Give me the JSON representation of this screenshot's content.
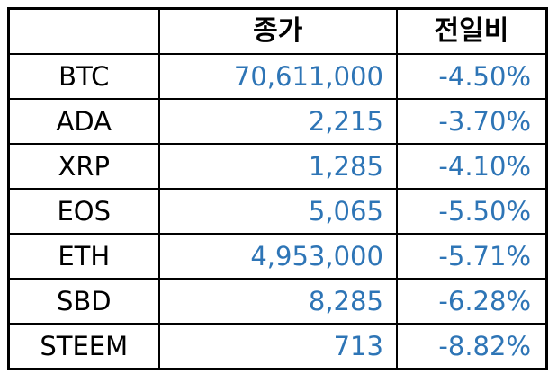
{
  "colors": {
    "value_text": "#2e75b6",
    "header_text": "#000000",
    "border": "#000000",
    "background": "#ffffff"
  },
  "chart_data": {
    "type": "table",
    "title": "",
    "columns": [
      "",
      "종가",
      "전일비"
    ],
    "rows": [
      {
        "ticker": "BTC",
        "close": "70,611,000",
        "close_value": 70611000,
        "change": "-4.50%",
        "change_value": -4.5
      },
      {
        "ticker": "ADA",
        "close": "2,215",
        "close_value": 2215,
        "change": "-3.70%",
        "change_value": -3.7
      },
      {
        "ticker": "XRP",
        "close": "1,285",
        "close_value": 1285,
        "change": "-4.10%",
        "change_value": -4.1
      },
      {
        "ticker": "EOS",
        "close": "5,065",
        "close_value": 5065,
        "change": "-5.50%",
        "change_value": -5.5
      },
      {
        "ticker": "ETH",
        "close": "4,953,000",
        "close_value": 4953000,
        "change": "-5.71%",
        "change_value": -5.71
      },
      {
        "ticker": "SBD",
        "close": "8,285",
        "close_value": 8285,
        "change": "-6.28%",
        "change_value": -6.28
      },
      {
        "ticker": "STEEM",
        "close": "713",
        "close_value": 713,
        "change": "-8.82%",
        "change_value": -8.82
      }
    ]
  }
}
